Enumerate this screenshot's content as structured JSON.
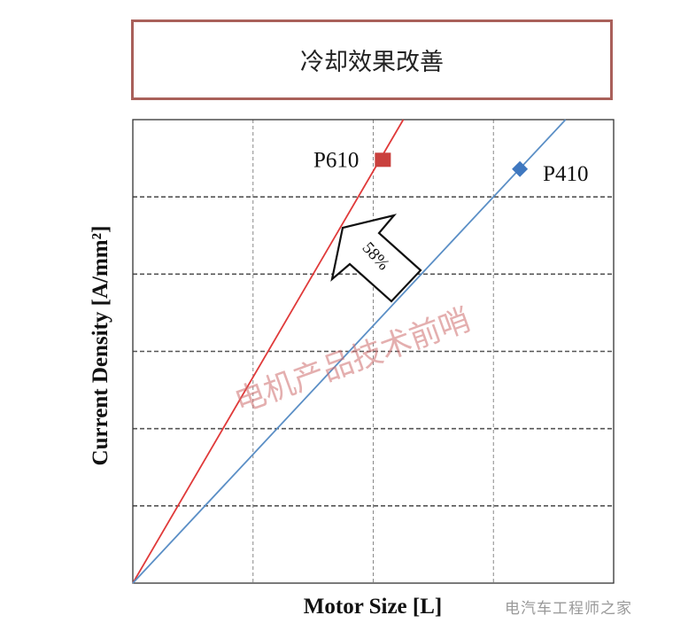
{
  "header": {
    "title": "冷却效果改善"
  },
  "chart_data": {
    "type": "line",
    "xlabel": "Motor Size [L]",
    "ylabel": "Current Density [A/mm²]",
    "xlim": [
      0,
      4
    ],
    "ylim": [
      0,
      6
    ],
    "grid": true,
    "series": [
      {
        "name": "P610",
        "color": "#e03a3a",
        "x": [
          0,
          2.25
        ],
        "y": [
          0,
          6
        ]
      },
      {
        "name": "P410",
        "color": "#5b8fc6",
        "x": [
          0,
          3.6
        ],
        "y": [
          0,
          6
        ]
      }
    ],
    "points": [
      {
        "label": "P610",
        "x": 2.08,
        "y": 5.48,
        "marker": "square",
        "color": "#c9403d"
      },
      {
        "label": "P410",
        "x": 3.22,
        "y": 5.36,
        "marker": "diamond",
        "color": "#3f78c0"
      }
    ],
    "annotation": {
      "text": "58%",
      "shape": "arrow-up-left"
    }
  },
  "watermarks": {
    "center": "电机产品技术前哨",
    "corner": "电汽车工程师之家"
  }
}
